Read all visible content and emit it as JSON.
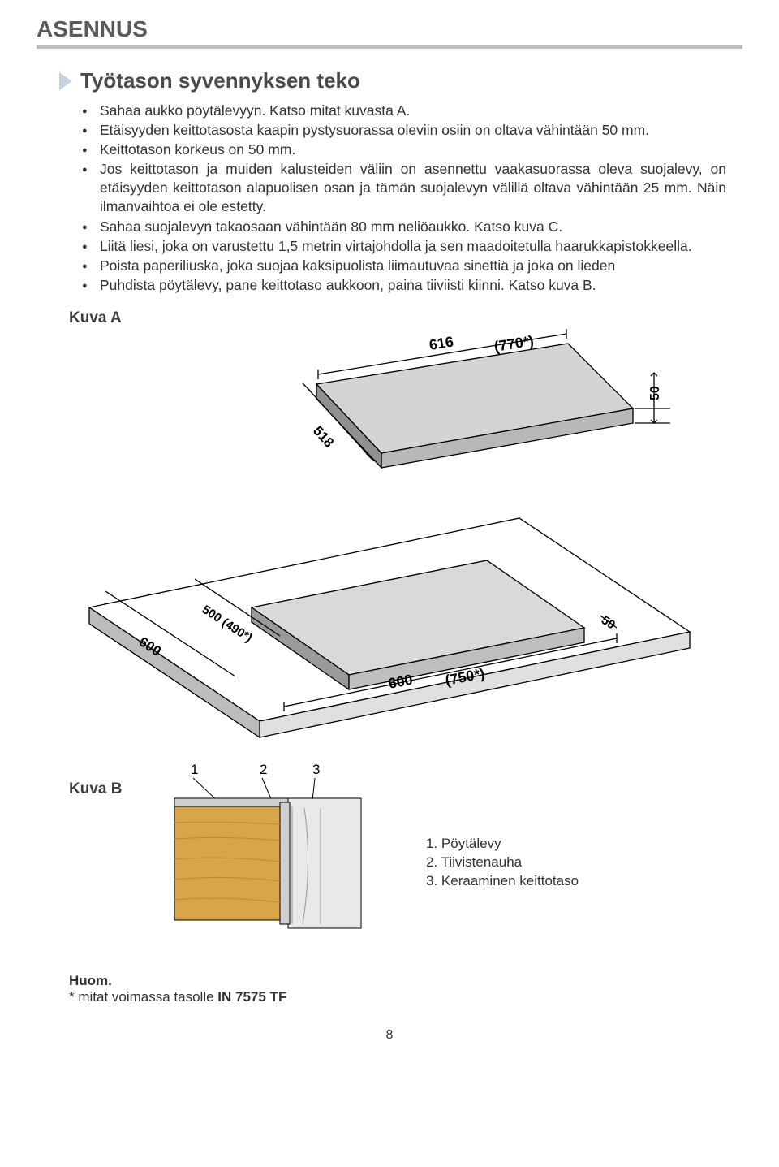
{
  "section_title": "ASENNUS",
  "sub_title": "Työtason syvennyksen teko",
  "bullets": [
    "Sahaa aukko pöytälevyyn. Katso mitat kuvasta A.",
    "Etäisyyden keittotasosta kaapin pystysuorassa oleviin osiin on oltava vähintään 50 mm.",
    "Keittotason korkeus on 50 mm.",
    "Jos keittotason ja muiden kalusteiden väliin on asennettu vaakasuorassa oleva suojalevy, on etäisyyden keittotason alapuolisen osan ja tämän suojalevyn välillä oltava vähintään 25 mm. Näin ilmanvaihtoa ei ole estetty.",
    "Sahaa suojalevyn takaosaan vähintään 80 mm neliöaukko. Katso kuva C.",
    "Liitä liesi, joka on varustettu 1,5 metrin virtajohdolla ja sen maadoitetulla haarukkapistokkeella.",
    "Poista paperiliuska, joka suojaa kaksipuolista liimautuvaa sinettiä ja joka on lieden",
    "Puhdista pöytälevy, pane keittotaso aukkoon, paina tiiviisti kiinni. Katso kuva B."
  ],
  "figure_a_label": "Kuva A",
  "figure_b_label": "Kuva B",
  "diagram_a": {
    "hob_width": "616",
    "hob_width_alt": "(770*)",
    "hob_depth": "518",
    "hob_height": "50",
    "cutout_depth": "600",
    "cutout_alt": "500 (490*)",
    "cutout_width": "600",
    "cutout_width_alt": "(750*)",
    "thickness": "50",
    "stroke": "#000000",
    "fill_hob": "#e8e8e8",
    "fill_worktop": "#ffffff",
    "fill_cutout": "#d9d9d9",
    "font_size_dim": 16
  },
  "diagram_b": {
    "labels": [
      "1",
      "2",
      "3"
    ],
    "wood_fill": "#d8a54a",
    "wood_grain": "#c08830",
    "profile_fill": "#cfcfcf",
    "profile_stroke": "#000000"
  },
  "legend": [
    "1. Pöytälevy",
    "2. Tiivistenauha",
    "3. Keraaminen keittotaso"
  ],
  "note_title": "Huom.",
  "note_body_prefix": "* mitat voimassa tasolle ",
  "note_body_bold": "IN 7575 TF",
  "page_number": "8"
}
